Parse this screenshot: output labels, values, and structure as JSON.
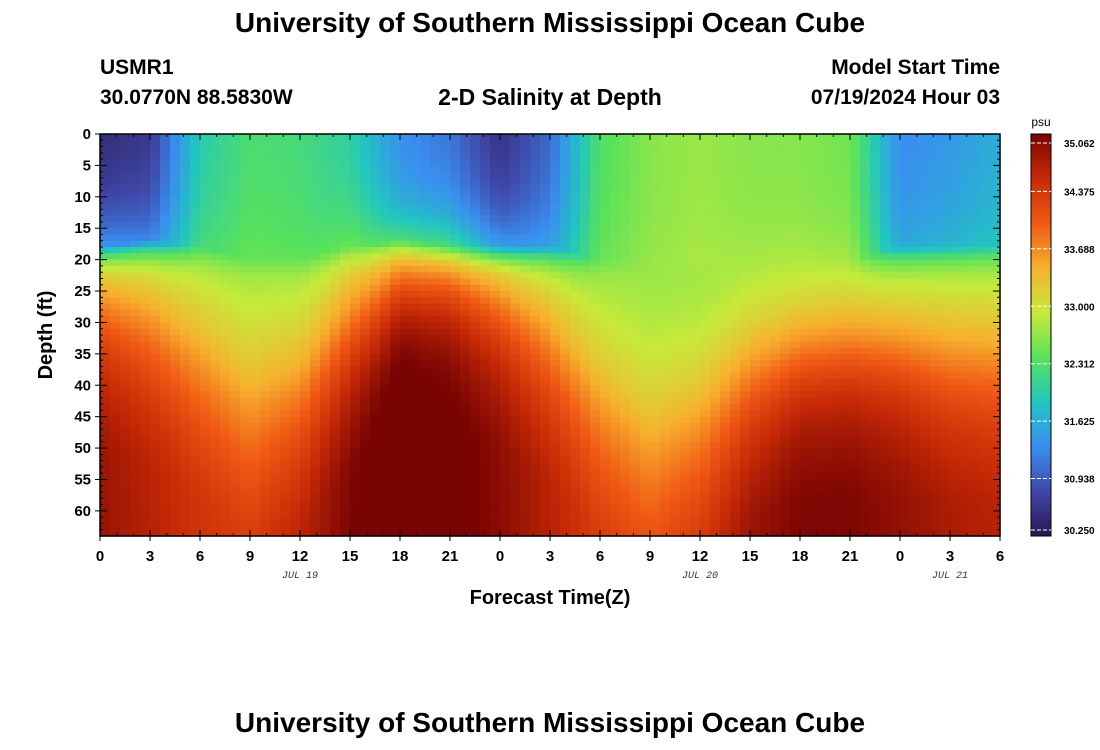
{
  "header": {
    "title": "University of Southern Mississippi Ocean Cube",
    "station_id": "USMR1",
    "coordinates": "30.0770N  88.5830W",
    "subtitle": "2-D Salinity at Depth",
    "model_start_label": "Model Start Time",
    "model_start_value": "07/19/2024 Hour 03"
  },
  "footer": {
    "title": "University of Southern Mississippi Ocean Cube"
  },
  "chart_data": {
    "type": "heatmap",
    "title": "2-D Salinity at Depth",
    "xlabel": "Forecast Time(Z)",
    "ylabel": "Depth (ft)",
    "x_tick_labels": [
      "0",
      "3",
      "6",
      "9",
      "12",
      "15",
      "18",
      "21",
      "0",
      "3",
      "6",
      "9",
      "12",
      "15",
      "18",
      "21",
      "0",
      "3",
      "6"
    ],
    "x_range_hours": [
      0,
      54
    ],
    "date_labels": [
      {
        "label": "JUL 19",
        "hour": 12
      },
      {
        "label": "JUL 20",
        "hour": 36
      },
      {
        "label": "JUL 21",
        "hour": 51
      }
    ],
    "y_tick_labels": [
      "0",
      "5",
      "10",
      "15",
      "20",
      "25",
      "30",
      "35",
      "40",
      "45",
      "50",
      "55",
      "60"
    ],
    "y_range_ft": [
      0,
      64
    ],
    "colorbar": {
      "unit": "psu",
      "range": [
        30.25,
        35.062
      ],
      "labels": [
        "35.062",
        "34.375",
        "33.688",
        "33.000",
        "32.312",
        "31.625",
        "30.938",
        "30.250"
      ],
      "stops": [
        "#2a1650",
        "#3f48a8",
        "#3a8ef0",
        "#21c6c0",
        "#59e25a",
        "#c7ea3a",
        "#f7b02e",
        "#f05a14",
        "#c72a06",
        "#7a0403"
      ]
    },
    "salinity_profile_by_hour": [
      {
        "hour": 0,
        "surface": 30.45,
        "surface_depth_ft": 18,
        "bottom": 34.5,
        "cline_depth_ft": 25,
        "cline_width_ft": 6
      },
      {
        "hour": 3,
        "surface": 30.55,
        "surface_depth_ft": 17,
        "bottom": 34.3,
        "cline_depth_ft": 27,
        "cline_width_ft": 7
      },
      {
        "hour": 6,
        "surface": 31.9,
        "surface_depth_ft": 18,
        "bottom": 34.1,
        "cline_depth_ft": 32,
        "cline_width_ft": 8
      },
      {
        "hour": 9,
        "surface": 32.25,
        "surface_depth_ft": 20,
        "bottom": 34.0,
        "cline_depth_ft": 38,
        "cline_width_ft": 9
      },
      {
        "hour": 12,
        "surface": 32.2,
        "surface_depth_ft": 20,
        "bottom": 34.3,
        "cline_depth_ft": 37,
        "cline_width_ft": 8
      },
      {
        "hour": 15,
        "surface": 31.95,
        "surface_depth_ft": 18,
        "bottom": 34.7,
        "cline_depth_ft": 28,
        "cline_width_ft": 7
      },
      {
        "hour": 18,
        "surface": 31.3,
        "surface_depth_ft": 17,
        "bottom": 35.0,
        "cline_depth_ft": 22,
        "cline_width_ft": 5
      },
      {
        "hour": 21,
        "surface": 31.1,
        "surface_depth_ft": 18,
        "bottom": 34.85,
        "cline_depth_ft": 22,
        "cline_width_ft": 5
      },
      {
        "hour": 24,
        "surface": 30.5,
        "surface_depth_ft": 18,
        "bottom": 34.6,
        "cline_depth_ft": 25,
        "cline_width_ft": 6
      },
      {
        "hour": 27,
        "surface": 31.0,
        "surface_depth_ft": 18,
        "bottom": 34.3,
        "cline_depth_ft": 30,
        "cline_width_ft": 7
      },
      {
        "hour": 30,
        "surface": 32.3,
        "surface_depth_ft": 20,
        "bottom": 34.0,
        "cline_depth_ft": 38,
        "cline_width_ft": 8
      },
      {
        "hour": 33,
        "surface": 32.6,
        "surface_depth_ft": 20,
        "bottom": 33.9,
        "cline_depth_ft": 44,
        "cline_width_ft": 9
      },
      {
        "hour": 36,
        "surface": 32.7,
        "surface_depth_ft": 20,
        "bottom": 34.1,
        "cline_depth_ft": 42,
        "cline_width_ft": 8
      },
      {
        "hour": 39,
        "surface": 32.6,
        "surface_depth_ft": 20,
        "bottom": 34.5,
        "cline_depth_ft": 36,
        "cline_width_ft": 7
      },
      {
        "hour": 42,
        "surface": 32.6,
        "surface_depth_ft": 20,
        "bottom": 34.7,
        "cline_depth_ft": 33,
        "cline_width_ft": 6
      },
      {
        "hour": 45,
        "surface": 32.5,
        "surface_depth_ft": 20,
        "bottom": 34.7,
        "cline_depth_ft": 32,
        "cline_width_ft": 6
      },
      {
        "hour": 48,
        "surface": 31.3,
        "surface_depth_ft": 18,
        "bottom": 34.55,
        "cline_depth_ft": 32,
        "cline_width_ft": 6
      },
      {
        "hour": 51,
        "surface": 31.4,
        "surface_depth_ft": 18,
        "bottom": 34.4,
        "cline_depth_ft": 33,
        "cline_width_ft": 7
      },
      {
        "hour": 54,
        "surface": 31.6,
        "surface_depth_ft": 18,
        "bottom": 34.3,
        "cline_depth_ft": 33,
        "cline_width_ft": 7
      }
    ]
  }
}
